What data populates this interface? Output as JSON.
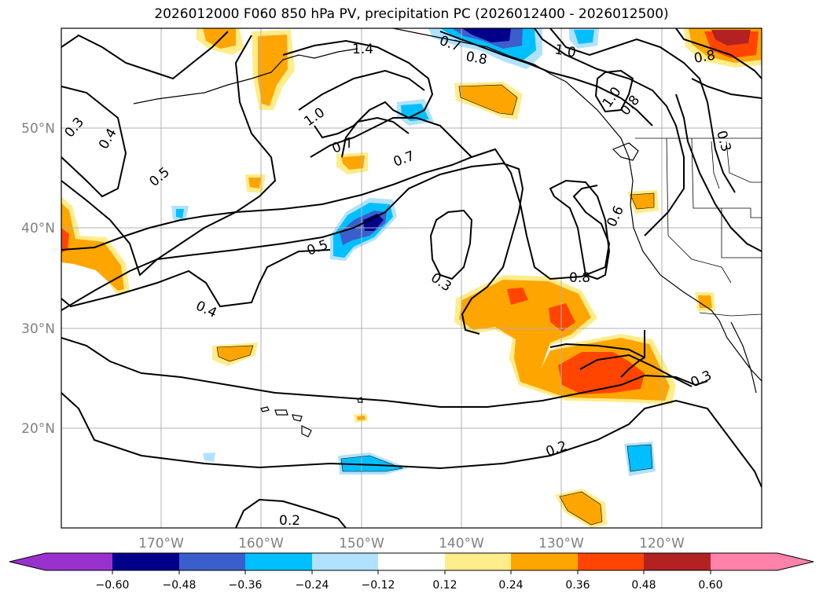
{
  "title": "2026012000 F060 850 hPa PV, precipitation PC (2026012400 - 2026012500)",
  "colors": {
    "c_neg5": "#9932cc",
    "c_neg4": "#00008b",
    "c_neg3": "#3a5fcd",
    "c_neg2": "#00bfff",
    "c_neg1": "#b0e2ff",
    "c_zero": "#ffffff",
    "c_pos1": "#ffec8b",
    "c_pos2": "#ffa500",
    "c_pos3": "#ff4500",
    "c_pos4": "#b22222",
    "c_pos5": "#ff82ab"
  },
  "axes": {
    "lat_ticks": [
      "50°N",
      "40°N",
      "30°N",
      "20°N"
    ],
    "lon_ticks": [
      "170°W",
      "160°W",
      "150°W",
      "140°W",
      "130°W",
      "120°W"
    ]
  },
  "colorbar": {
    "tick_labels": [
      "−0.60",
      "−0.48",
      "−0.36",
      "−0.24",
      "−0.12",
      "0.12",
      "0.24",
      "0.36",
      "0.48",
      "0.60"
    ]
  },
  "contour_labels": [
    "0.3",
    "0.4",
    "0.5",
    "1.0",
    "1.4",
    "0.7",
    "0.8",
    "0.7",
    "0.8",
    "1.0",
    "1.0",
    "0.8",
    "0.3",
    "0.5",
    "0.7",
    "0.6",
    "0.3",
    "0.4",
    "0.8",
    "0.3",
    "0.2",
    "0.2"
  ]
}
